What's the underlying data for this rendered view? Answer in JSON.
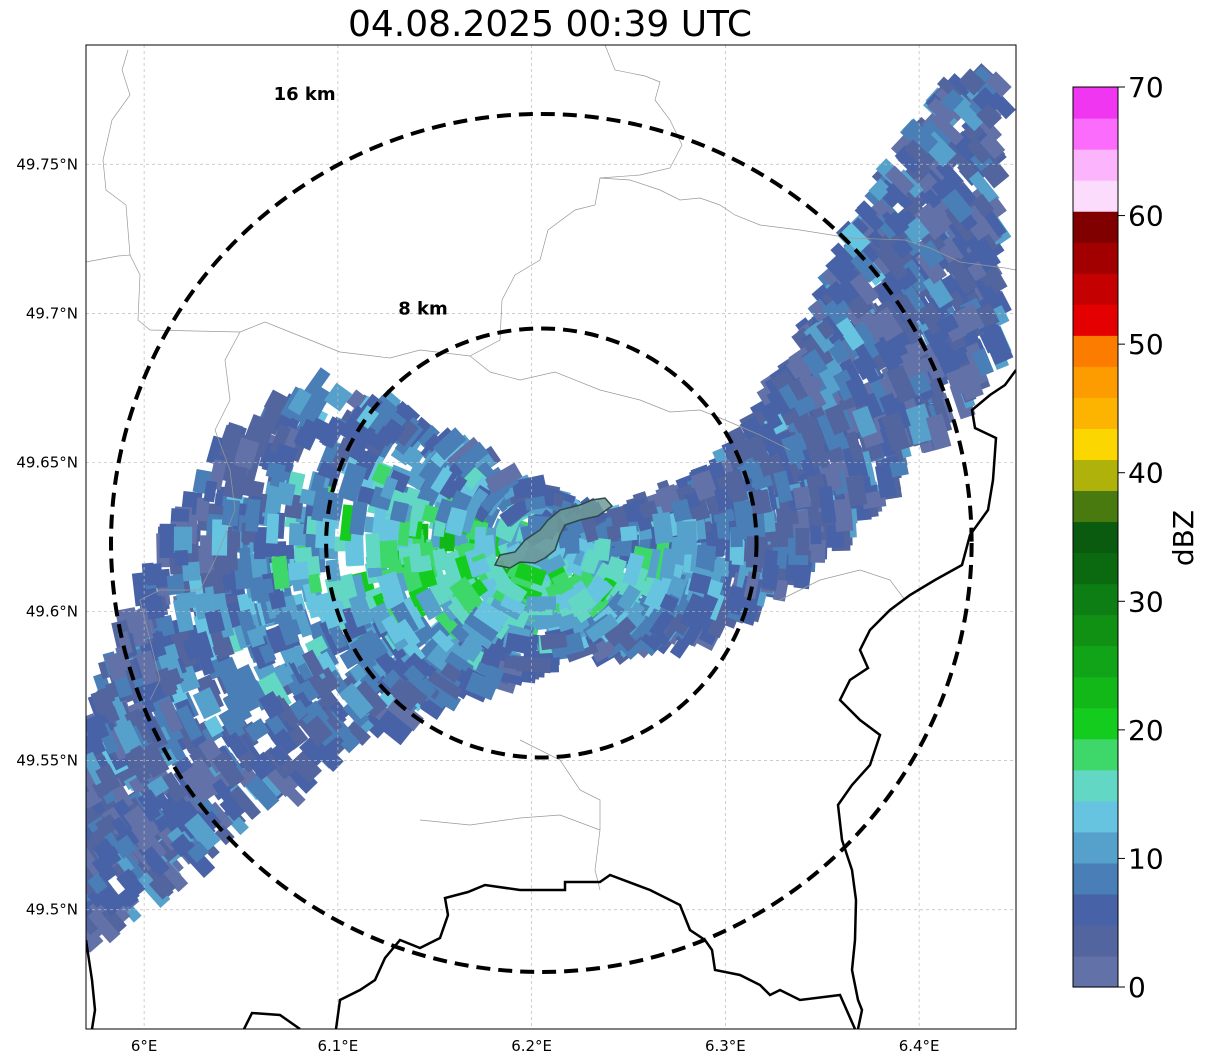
{
  "title": "04.08.2025 00:39 UTC",
  "map": {
    "lon_range": [
      5.97,
      6.45
    ],
    "lat_range": [
      49.46,
      49.79
    ],
    "x_ticks": [
      {
        "value": 6.0,
        "label": "6°E"
      },
      {
        "value": 6.1,
        "label": "6.1°E"
      },
      {
        "value": 6.2,
        "label": "6.2°E"
      },
      {
        "value": 6.3,
        "label": "6.3°E"
      },
      {
        "value": 6.4,
        "label": "6.4°E"
      }
    ],
    "y_ticks": [
      {
        "value": 49.5,
        "label": "49.5°N"
      },
      {
        "value": 49.55,
        "label": "49.55°N"
      },
      {
        "value": 49.6,
        "label": "49.6°N"
      },
      {
        "value": 49.65,
        "label": "49.65°N"
      },
      {
        "value": 49.7,
        "label": "49.7°N"
      },
      {
        "value": 49.75,
        "label": "49.75°N"
      }
    ],
    "grid": true,
    "center": {
      "lon": 6.205,
      "lat": 49.623
    },
    "rings": [
      {
        "radius_km": 8,
        "label": "8 km"
      },
      {
        "radius_km": 16,
        "label": "16 km"
      }
    ]
  },
  "colorbar": {
    "label": "dBZ",
    "min": 0,
    "max": 70,
    "tick_labels": [
      "0",
      "10",
      "20",
      "30",
      "40",
      "50",
      "60",
      "70"
    ],
    "colors": [
      "#6272a8",
      "#52659f",
      "#4762a6",
      "#4a7eb6",
      "#56a0cc",
      "#66c4e0",
      "#62d8c4",
      "#3ed86a",
      "#14cc1e",
      "#12b818",
      "#12a418",
      "#119114",
      "#0d7e14",
      "#0b6910",
      "#0a5b10",
      "#487a10",
      "#aeb20a",
      "#fcd600",
      "#fcb400",
      "#fc9c00",
      "#fc7c00",
      "#e40000",
      "#c40000",
      "#a20000",
      "#800000",
      "#fcdcfc",
      "#fcb4fc",
      "#fc6cfc",
      "#f036f0"
    ]
  }
}
